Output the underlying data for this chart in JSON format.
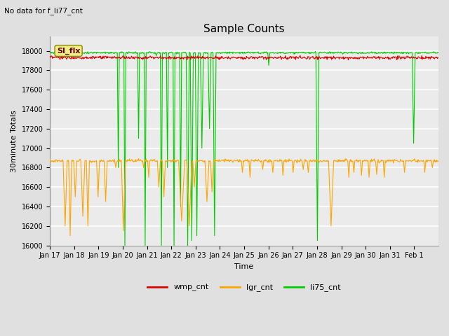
{
  "title": "Sample Counts",
  "subtitle": "No data for f_li77_cnt",
  "xlabel": "Time",
  "ylabel": "30minute Totals",
  "ylim": [
    16000,
    18150
  ],
  "x_tick_labels": [
    "Jan 17",
    "Jan 18",
    "Jan 19",
    "Jan 20",
    "Jan 21",
    "Jan 22",
    "Jan 23",
    "Jan 24",
    "Jan 25",
    "Jan 26",
    "Jan 27",
    "Jan 28",
    "Jan 29",
    "Jan 30",
    "Jan 31",
    "Feb 1"
  ],
  "annotation_text": "SI_flx",
  "legend_labels": [
    "wmp_cnt",
    "lgr_cnt",
    "li75_cnt"
  ],
  "legend_colors": [
    "#dd0000",
    "#ffa500",
    "#00cc00"
  ],
  "bg_color": "#e0e0e0",
  "plot_bg_color": "#ebebeb",
  "wmp_base": 17930,
  "lgr_base": 16870,
  "li75_base": 17980
}
